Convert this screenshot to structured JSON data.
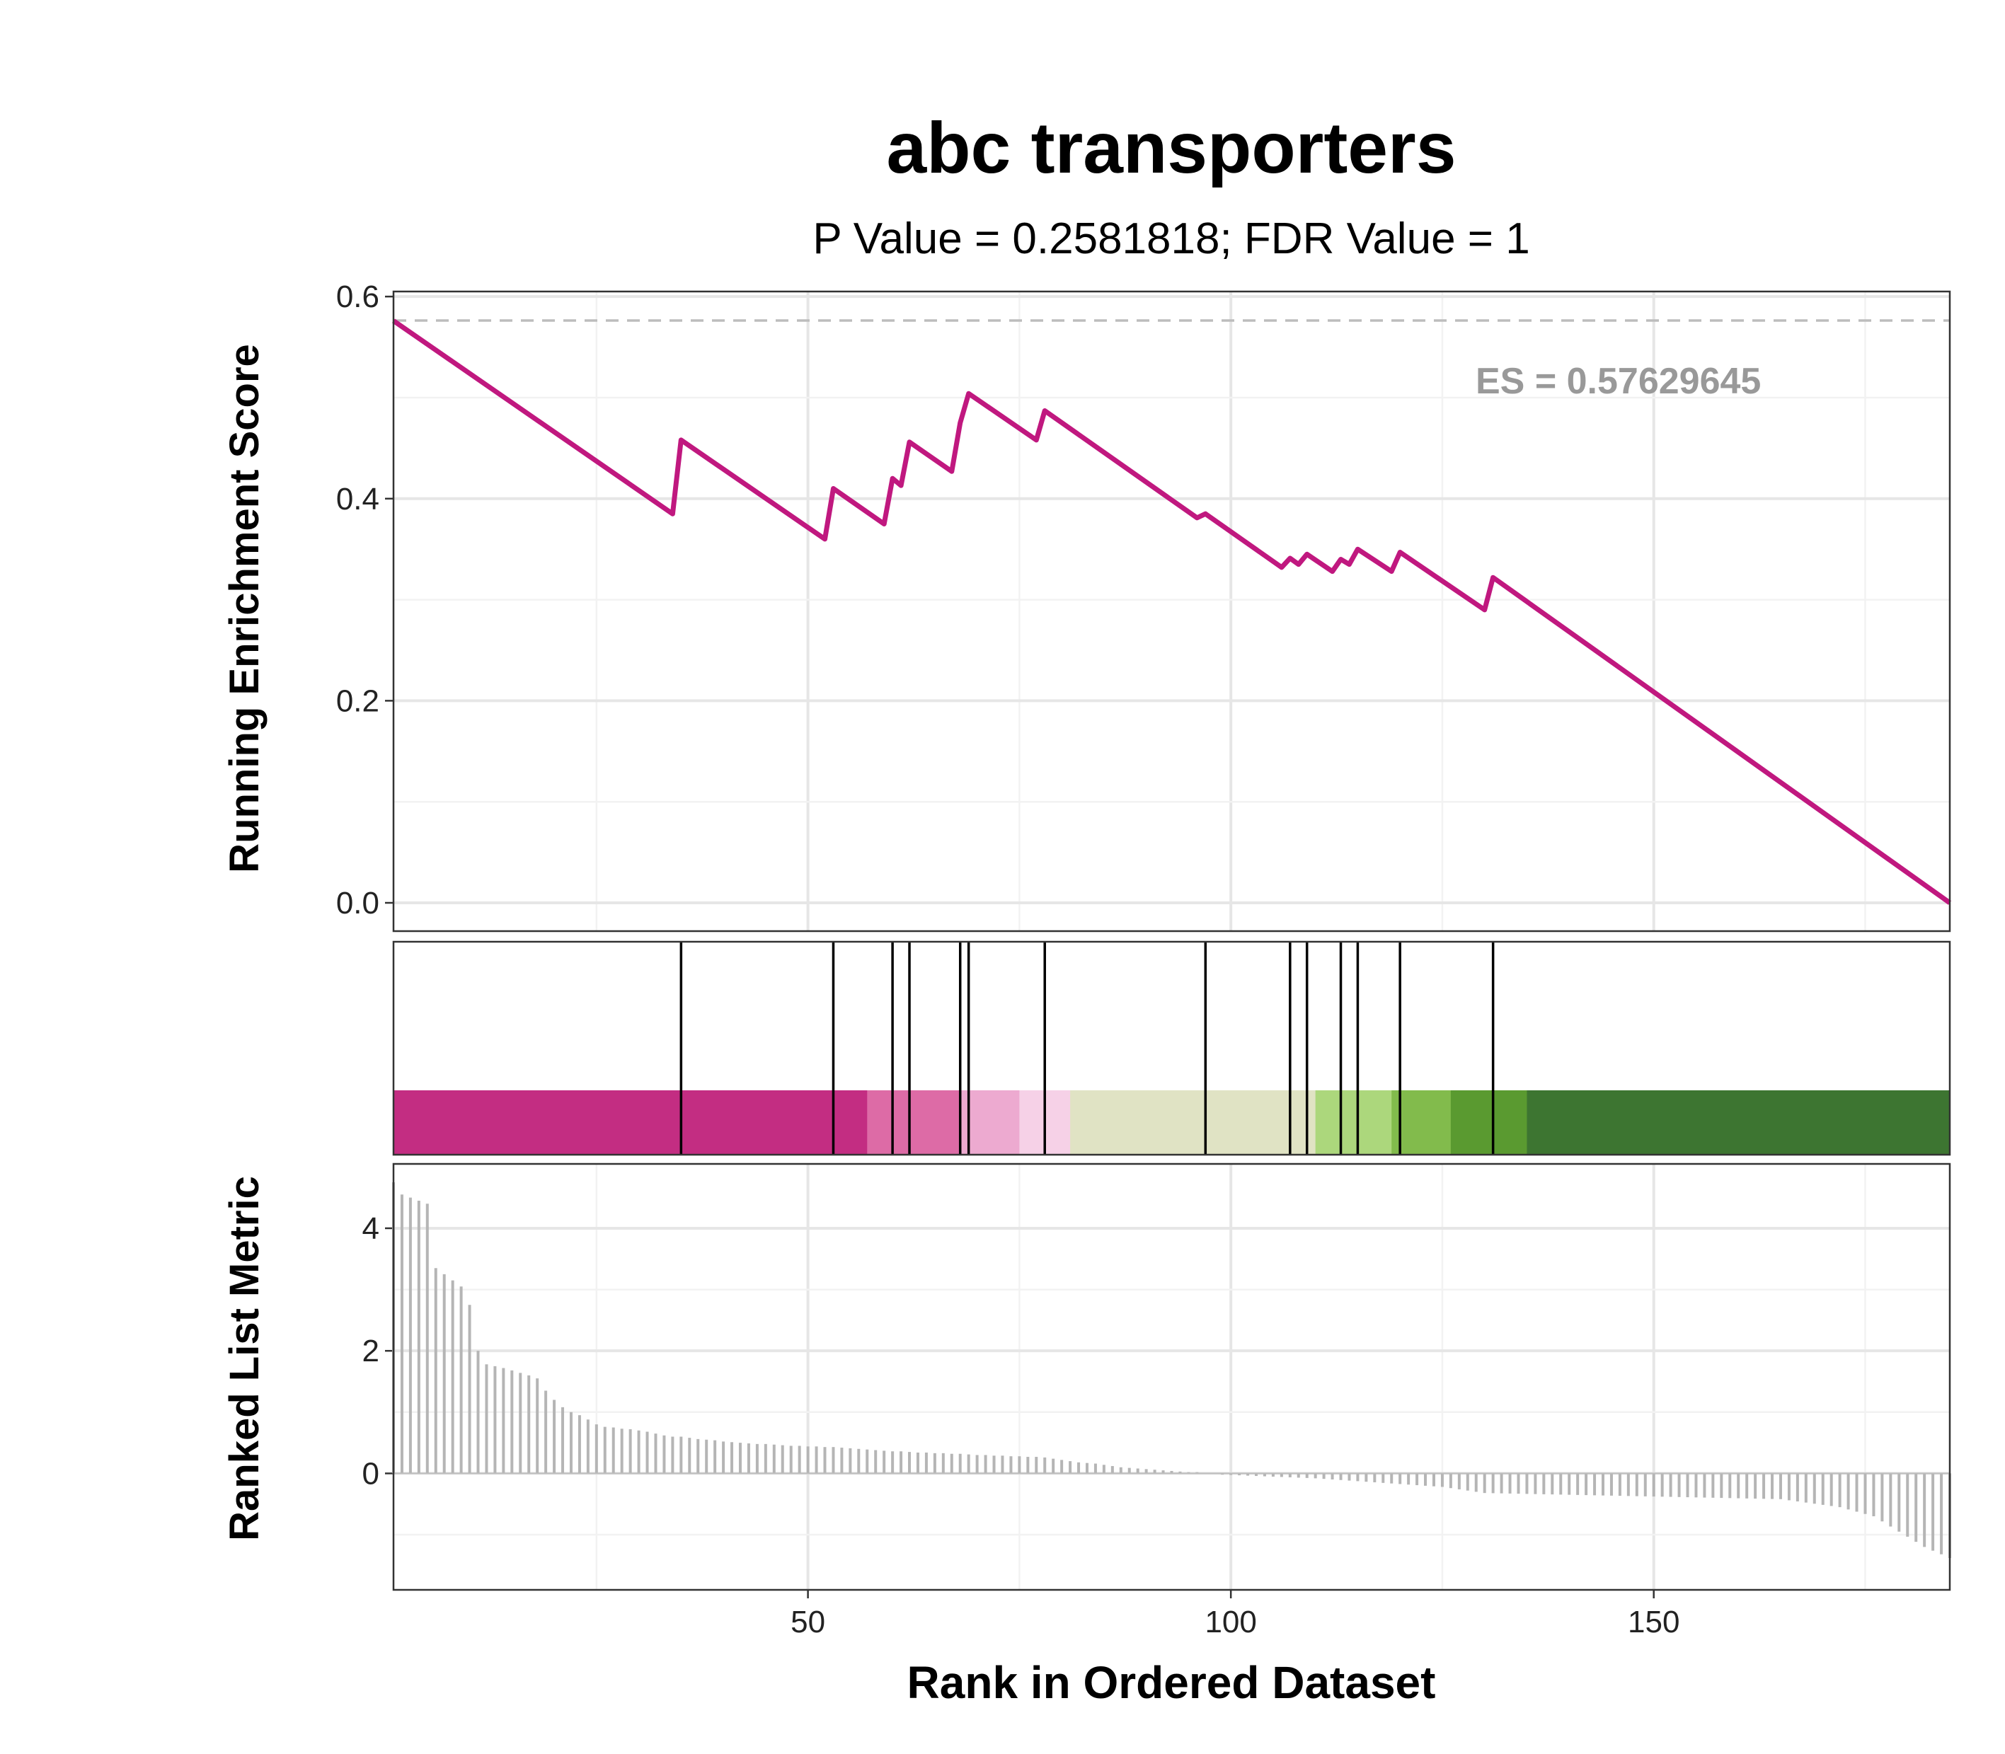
{
  "chart_data": {
    "type": "line",
    "title": "abc transporters",
    "subtitle": "P Value = 0.2581818; FDR Value = 1",
    "xlabel": "Rank in Ordered Dataset",
    "ylabel_top": "Running Enrichment Score",
    "ylabel_bottom": "Ranked List Metric",
    "es_label": "ES = 0.57629645",
    "es_value": 0.57629645,
    "xlim": [
      1,
      185
    ],
    "x_ticks": [
      50,
      100,
      150
    ],
    "x_tick_labels": [
      "50",
      "100",
      "150"
    ],
    "top_ylim": [
      -0.028,
      0.605
    ],
    "top_y_ticks": [
      0.0,
      0.2,
      0.4,
      0.6
    ],
    "top_y_tick_labels": [
      "0.0",
      "0.2",
      "0.4",
      "0.6"
    ],
    "bottom_ylim": [
      -1.9,
      5.05
    ],
    "bottom_y_ticks": [
      0,
      2,
      4
    ],
    "bottom_y_tick_labels": [
      "0",
      "2",
      "4"
    ],
    "hit_positions": [
      35,
      53,
      60,
      62,
      68,
      69,
      78,
      97,
      107,
      109,
      113,
      115,
      120,
      131
    ],
    "running_es": {
      "x": [
        1,
        34,
        35,
        52,
        53,
        59,
        60,
        61,
        62,
        67,
        68,
        69,
        77,
        78,
        96,
        97,
        106,
        107,
        108,
        109,
        112,
        113,
        114,
        115,
        119,
        120,
        130,
        131,
        185
      ],
      "y": [
        0.576,
        0.385,
        0.458,
        0.36,
        0.41,
        0.375,
        0.42,
        0.413,
        0.456,
        0.427,
        0.475,
        0.504,
        0.458,
        0.487,
        0.381,
        0.385,
        0.332,
        0.341,
        0.335,
        0.345,
        0.328,
        0.34,
        0.335,
        0.35,
        0.328,
        0.347,
        0.29,
        0.322,
        0.0
      ]
    },
    "color_bands": [
      {
        "from": 1,
        "to": 57,
        "color": "#c32d82"
      },
      {
        "from": 57,
        "to": 68,
        "color": "#dd6ba6"
      },
      {
        "from": 68,
        "to": 75,
        "color": "#edaad0"
      },
      {
        "from": 75,
        "to": 81,
        "color": "#f6d1e7"
      },
      {
        "from": 81,
        "to": 110,
        "color": "#e0e3c4"
      },
      {
        "from": 110,
        "to": 119,
        "color": "#acd77c"
      },
      {
        "from": 119,
        "to": 126,
        "color": "#82bb4c"
      },
      {
        "from": 126,
        "to": 135,
        "color": "#5a9a30"
      },
      {
        "from": 135,
        "to": 185,
        "color": "#3d7531"
      }
    ],
    "ranked_metric_head": [
      4.75,
      4.55,
      4.5,
      4.45,
      4.4,
      3.35,
      3.25,
      3.15,
      3.05,
      2.75,
      2.0,
      1.78,
      1.75,
      1.72,
      1.68,
      1.64,
      1.6,
      1.55,
      1.35,
      1.2,
      1.08,
      1.0,
      0.95,
      0.88,
      0.8,
      0.76,
      0.75,
      0.73,
      0.72,
      0.7,
      0.68,
      0.65,
      0.62,
      0.6,
      0.6,
      0.58,
      0.56,
      0.55,
      0.54,
      0.52,
      0.51,
      0.5,
      0.49,
      0.48,
      0.48,
      0.47,
      0.46,
      0.45,
      0.45,
      0.44,
      0.44,
      0.43,
      0.43,
      0.42,
      0.41,
      0.4,
      0.39,
      0.38,
      0.37,
      0.36,
      0.36,
      0.35,
      0.34,
      0.34,
      0.33,
      0.33,
      0.32,
      0.32,
      0.31,
      0.3,
      0.3,
      0.29,
      0.29,
      0.28,
      0.28,
      0.27,
      0.27,
      0.26,
      0.24,
      0.22,
      0.2,
      0.18,
      0.17,
      0.16,
      0.14,
      0.12,
      0.1,
      0.09,
      0.08,
      0.07,
      0.06,
      0.05,
      0.04,
      0.03,
      0.02,
      0.02,
      0.01,
      0.0
    ],
    "ranked_metric_tail_anchors": {
      "x": [
        99,
        110,
        125,
        130,
        165,
        172,
        176,
        179,
        182,
        185
      ],
      "y": [
        -0.02,
        -0.08,
        -0.22,
        -0.32,
        -0.42,
        -0.55,
        -0.7,
        -0.95,
        -1.2,
        -1.38
      ]
    }
  }
}
